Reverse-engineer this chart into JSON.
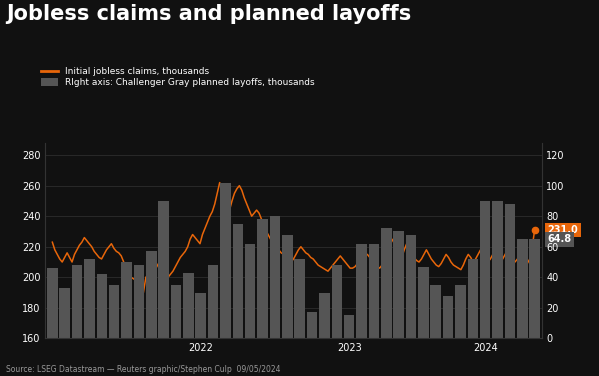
{
  "title": "Jobless claims and planned layoffs",
  "source": "Source: LSEG Datastream — Reuters graphic/Stephen Culp  09/05/2024",
  "bg_color": "#111111",
  "line_color": "#e8660a",
  "bar_color": "#555555",
  "text_color": "#ffffff",
  "grid_color": "#333333",
  "legend_line_label": "Initial jobless claims, thousands",
  "legend_bar_label": "RIght axis: Challenger Gray planned layoffs, thousands",
  "left_ylim": [
    160,
    288
  ],
  "left_yticks": [
    160,
    180,
    200,
    220,
    240,
    260,
    280
  ],
  "right_ylim": [
    0,
    128
  ],
  "right_yticks": [
    0,
    20,
    40,
    60,
    80,
    100,
    120
  ],
  "annotation_line_value": "231.0",
  "annotation_bar_value": "64.8",
  "annotation_line_color": "#e8660a",
  "annotation_bar_color": "#555555",
  "bar_data": [
    46,
    33,
    48,
    52,
    42,
    35,
    50,
    48,
    57,
    90,
    35,
    43,
    30,
    48,
    102,
    75,
    62,
    78,
    80,
    68,
    52,
    17,
    30,
    48,
    15,
    62,
    62,
    72,
    70,
    68,
    47,
    35,
    28,
    35,
    52,
    90,
    90,
    88,
    65,
    64.8
  ],
  "line_data": [
    223,
    218,
    215,
    212,
    210,
    213,
    216,
    213,
    210,
    215,
    218,
    221,
    223,
    226,
    224,
    222,
    220,
    217,
    215,
    213,
    212,
    215,
    218,
    220,
    222,
    219,
    217,
    216,
    214,
    210,
    206,
    202,
    200,
    199,
    198,
    196,
    185,
    190,
    200,
    202,
    205,
    208,
    210,
    207,
    204,
    201,
    199,
    200,
    202,
    204,
    207,
    210,
    213,
    215,
    217,
    220,
    225,
    228,
    226,
    224,
    222,
    228,
    232,
    236,
    240,
    243,
    248,
    255,
    262,
    258,
    252,
    248,
    244,
    250,
    255,
    258,
    260,
    257,
    252,
    248,
    244,
    240,
    242,
    244,
    242,
    238,
    234,
    230,
    227,
    224,
    222,
    220,
    218,
    216,
    215,
    214,
    212,
    210,
    212,
    215,
    218,
    220,
    218,
    216,
    215,
    213,
    212,
    210,
    208,
    207,
    206,
    205,
    204,
    206,
    208,
    210,
    212,
    214,
    212,
    210,
    208,
    206,
    206,
    207,
    209,
    210,
    212,
    214,
    215,
    213,
    211,
    209,
    207,
    206,
    208,
    210,
    214,
    220,
    225,
    222,
    218,
    215,
    213,
    218,
    222,
    220,
    216,
    213,
    211,
    210,
    212,
    215,
    218,
    215,
    212,
    210,
    208,
    207,
    209,
    212,
    215,
    213,
    210,
    208,
    207,
    206,
    205,
    208,
    212,
    215,
    213,
    210,
    212,
    215,
    218,
    220,
    215,
    210,
    212,
    215,
    213,
    211,
    210,
    212,
    215,
    218,
    215,
    212,
    210,
    212,
    215,
    213,
    210,
    209,
    212,
    220,
    231
  ]
}
